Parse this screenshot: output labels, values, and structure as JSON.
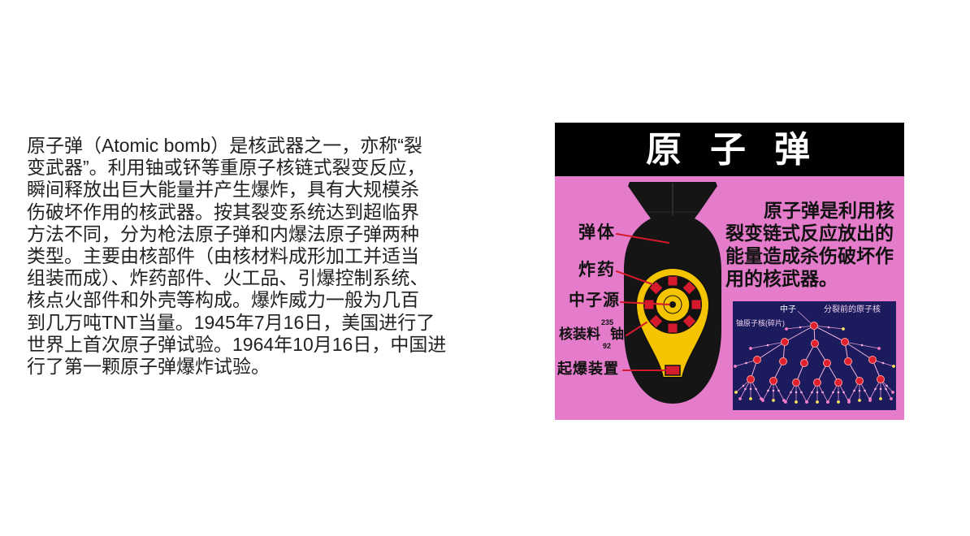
{
  "slide": {
    "intro": {
      "lines": [
        "原子弹（Atomic bomb）是核武器之一，亦称“裂",
        "变武器”。利用铀或钚等重原子核链式裂变反应，",
        "瞬间释放出巨大能量并产生爆炸，具有大规模杀",
        "伤破坏作用的核武器。按其裂变系统达到超临界",
        "方法不同，分为枪法原子弹和内爆法原子弹两种",
        "类型。主要由核部件（由核材料成形加工并适当",
        "组装而成）、炸药部件、火工品、引爆控制系统、",
        "核点火部件和外壳等构成。爆炸威力一般为几百",
        "到几万吨TNT当量。1945年7月16日，美国进行了",
        "世界上首次原子弹试验。1964年10月16日，中国进",
        "行了第一颗原子弹爆炸试验。"
      ]
    },
    "figure": {
      "title": "原子弹",
      "parts": {
        "shell": "弹体",
        "explosive": "炸药",
        "neutron_source": "中子源",
        "nuclear_charge": "核装料",
        "isotope_mass": "235",
        "isotope_number": "92",
        "isotope_element": "铀",
        "detonator": "起爆装置"
      },
      "caption_lines": [
        "原子弹是利用核",
        "裂变链式反应放出的",
        "能量造成杀伤破坏作",
        "用的核武器。"
      ],
      "chain_reaction": {
        "neutron_label": "中子",
        "nucleus_label": "分裂前的原子核",
        "fragment_label": "铀原子核(碎片)"
      },
      "colors": {
        "header": "#000000",
        "background": "#e47ccb",
        "bomb_body": "#151515",
        "core": "#f5c400",
        "leader_line": "#d41a2c",
        "diagram_background": "#1c1b5e"
      }
    }
  }
}
